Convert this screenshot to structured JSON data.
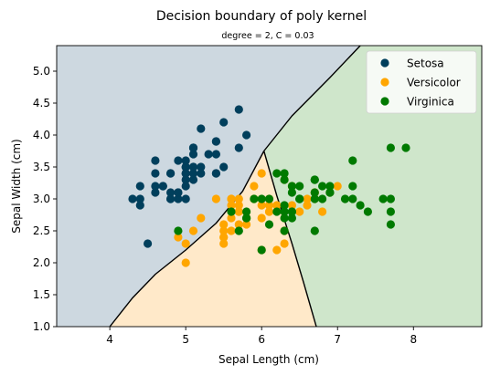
{
  "chart_data": {
    "type": "scatter",
    "title": "Decision boundary of poly kernel",
    "subtitle": "degree = 2, C = 0.03",
    "xlabel": "Sepal Length (cm)",
    "ylabel": "Sepal Width (cm)",
    "xlim": [
      3.3,
      8.9
    ],
    "ylim": [
      1.0,
      5.4
    ],
    "xticks": [
      4,
      5,
      6,
      7,
      8
    ],
    "yticks": [
      1.0,
      1.5,
      2.0,
      2.5,
      3.0,
      3.5,
      4.0,
      4.5,
      5.0
    ],
    "legend_position": "top-right",
    "regions": [
      {
        "class": "Setosa",
        "color": "#cdd8e0"
      },
      {
        "class": "Versicolor",
        "color": "#ffe9c9"
      },
      {
        "class": "Virginica",
        "color": "#cfe6cb"
      }
    ],
    "boundary": {
      "color": "#000000",
      "junction": [
        6.03,
        3.75
      ],
      "setosa_versicolor": [
        [
          4.0,
          1.0
        ],
        [
          4.3,
          1.45
        ],
        [
          4.6,
          1.82
        ],
        [
          5.0,
          2.2
        ],
        [
          5.4,
          2.62
        ],
        [
          5.75,
          3.12
        ],
        [
          6.03,
          3.75
        ]
      ],
      "setosa_virginica": [
        [
          6.03,
          3.75
        ],
        [
          6.4,
          4.3
        ],
        [
          6.9,
          4.9
        ],
        [
          7.3,
          5.4
        ]
      ],
      "versicolor_virginica": [
        [
          6.03,
          3.75
        ],
        [
          6.2,
          3.05
        ],
        [
          6.4,
          2.3
        ],
        [
          6.55,
          1.7
        ],
        [
          6.72,
          1.0
        ]
      ]
    },
    "series": [
      {
        "name": "Setosa",
        "color": "#003f5c",
        "points": [
          [
            5.1,
            3.5
          ],
          [
            4.9,
            3.0
          ],
          [
            4.7,
            3.2
          ],
          [
            4.6,
            3.1
          ],
          [
            5.0,
            3.6
          ],
          [
            5.4,
            3.9
          ],
          [
            4.6,
            3.4
          ],
          [
            5.0,
            3.4
          ],
          [
            4.4,
            2.9
          ],
          [
            4.9,
            3.1
          ],
          [
            5.4,
            3.7
          ],
          [
            4.8,
            3.4
          ],
          [
            4.8,
            3.0
          ],
          [
            4.3,
            3.0
          ],
          [
            5.8,
            4.0
          ],
          [
            5.7,
            4.4
          ],
          [
            5.4,
            3.9
          ],
          [
            5.1,
            3.5
          ],
          [
            5.7,
            3.8
          ],
          [
            5.1,
            3.8
          ],
          [
            5.4,
            3.4
          ],
          [
            5.1,
            3.7
          ],
          [
            4.6,
            3.6
          ],
          [
            5.1,
            3.3
          ],
          [
            4.8,
            3.4
          ],
          [
            5.0,
            3.0
          ],
          [
            5.0,
            3.4
          ],
          [
            5.2,
            3.5
          ],
          [
            5.2,
            3.4
          ],
          [
            4.7,
            3.2
          ],
          [
            4.8,
            3.1
          ],
          [
            5.4,
            3.4
          ],
          [
            5.2,
            4.1
          ],
          [
            5.5,
            4.2
          ],
          [
            4.9,
            3.1
          ],
          [
            5.0,
            3.2
          ],
          [
            5.5,
            3.5
          ],
          [
            4.9,
            3.6
          ],
          [
            4.4,
            3.0
          ],
          [
            5.1,
            3.4
          ],
          [
            5.0,
            3.5
          ],
          [
            4.5,
            2.3
          ],
          [
            4.4,
            3.2
          ],
          [
            5.0,
            3.5
          ],
          [
            5.1,
            3.8
          ],
          [
            4.8,
            3.0
          ],
          [
            5.1,
            3.8
          ],
          [
            4.6,
            3.2
          ],
          [
            5.3,
            3.7
          ],
          [
            5.0,
            3.3
          ]
        ]
      },
      {
        "name": "Versicolor",
        "color": "#ffa600",
        "points": [
          [
            7.0,
            3.2
          ],
          [
            6.4,
            3.2
          ],
          [
            6.9,
            3.1
          ],
          [
            5.5,
            2.3
          ],
          [
            6.5,
            2.8
          ],
          [
            5.7,
            2.8
          ],
          [
            6.3,
            3.3
          ],
          [
            4.9,
            2.4
          ],
          [
            6.6,
            2.9
          ],
          [
            5.2,
            2.7
          ],
          [
            5.0,
            2.0
          ],
          [
            5.9,
            3.0
          ],
          [
            6.0,
            2.2
          ],
          [
            6.1,
            2.9
          ],
          [
            5.6,
            2.9
          ],
          [
            6.7,
            3.1
          ],
          [
            5.6,
            3.0
          ],
          [
            5.8,
            2.7
          ],
          [
            6.2,
            2.2
          ],
          [
            5.6,
            2.5
          ],
          [
            5.9,
            3.2
          ],
          [
            6.1,
            2.8
          ],
          [
            6.3,
            2.5
          ],
          [
            6.1,
            2.8
          ],
          [
            6.4,
            2.9
          ],
          [
            6.6,
            3.0
          ],
          [
            6.8,
            2.8
          ],
          [
            6.7,
            3.0
          ],
          [
            6.0,
            2.9
          ],
          [
            5.7,
            2.6
          ],
          [
            5.5,
            2.4
          ],
          [
            5.5,
            2.4
          ],
          [
            5.8,
            2.7
          ],
          [
            6.0,
            2.7
          ],
          [
            5.4,
            3.0
          ],
          [
            6.0,
            3.4
          ],
          [
            6.7,
            3.1
          ],
          [
            6.3,
            2.3
          ],
          [
            5.6,
            3.0
          ],
          [
            5.5,
            2.5
          ],
          [
            5.5,
            2.6
          ],
          [
            6.1,
            3.0
          ],
          [
            5.8,
            2.6
          ],
          [
            5.0,
            2.3
          ],
          [
            5.6,
            2.7
          ],
          [
            5.7,
            3.0
          ],
          [
            5.7,
            2.9
          ],
          [
            6.2,
            2.9
          ],
          [
            5.1,
            2.5
          ],
          [
            5.7,
            2.8
          ]
        ]
      },
      {
        "name": "Virginica",
        "color": "#007a00",
        "points": [
          [
            6.3,
            3.3
          ],
          [
            5.8,
            2.7
          ],
          [
            7.1,
            3.0
          ],
          [
            6.3,
            2.9
          ],
          [
            6.5,
            3.0
          ],
          [
            7.6,
            3.0
          ],
          [
            4.9,
            2.5
          ],
          [
            7.3,
            2.9
          ],
          [
            6.7,
            2.5
          ],
          [
            7.2,
            3.6
          ],
          [
            6.5,
            3.2
          ],
          [
            6.4,
            2.7
          ],
          [
            6.8,
            3.0
          ],
          [
            5.7,
            2.5
          ],
          [
            5.8,
            2.8
          ],
          [
            6.4,
            3.2
          ],
          [
            6.5,
            3.0
          ],
          [
            7.7,
            3.8
          ],
          [
            7.7,
            2.6
          ],
          [
            6.0,
            2.2
          ],
          [
            6.9,
            3.2
          ],
          [
            5.6,
            2.8
          ],
          [
            7.7,
            2.8
          ],
          [
            6.3,
            2.7
          ],
          [
            6.7,
            3.3
          ],
          [
            7.2,
            3.2
          ],
          [
            6.2,
            2.8
          ],
          [
            6.1,
            3.0
          ],
          [
            6.4,
            2.8
          ],
          [
            7.2,
            3.0
          ],
          [
            7.4,
            2.8
          ],
          [
            7.9,
            3.8
          ],
          [
            6.4,
            2.8
          ],
          [
            6.3,
            2.8
          ],
          [
            6.1,
            2.6
          ],
          [
            7.7,
            3.0
          ],
          [
            6.3,
            3.4
          ],
          [
            6.4,
            3.1
          ],
          [
            6.0,
            3.0
          ],
          [
            6.9,
            3.1
          ],
          [
            6.7,
            3.1
          ],
          [
            6.9,
            3.1
          ],
          [
            5.8,
            2.7
          ],
          [
            6.8,
            3.2
          ],
          [
            6.7,
            3.3
          ],
          [
            6.7,
            3.0
          ],
          [
            6.3,
            2.5
          ],
          [
            6.5,
            3.0
          ],
          [
            6.2,
            3.4
          ],
          [
            5.9,
            3.0
          ]
        ]
      }
    ]
  }
}
